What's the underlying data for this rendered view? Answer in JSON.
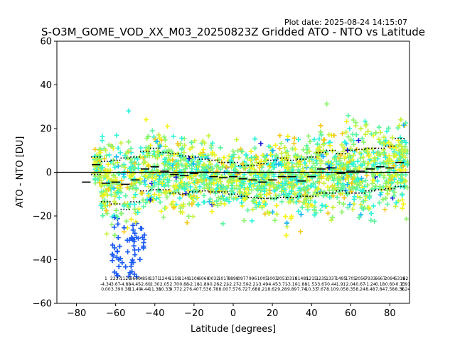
{
  "plot_date": "Plot date: 2025-08-24 14:15:07",
  "chart_data": {
    "type": "scatter",
    "title": "S-O3M_GOME_VOD_XX_M03_20250823Z Gridded ATO - NTO vs Latitude",
    "xlabel": "Latitude [degrees]",
    "ylabel": "ATO - NTO [DU]",
    "xlim": [
      -90,
      90
    ],
    "ylim": [
      -60,
      60
    ],
    "xticks": [
      -80,
      -60,
      -40,
      -20,
      0,
      20,
      40,
      60,
      80
    ],
    "yticks": [
      -60,
      -40,
      -20,
      0,
      20,
      40,
      60
    ],
    "zero_line": 0,
    "grid": false,
    "bin_width": 5,
    "mean_per_bin": [
      {
        "lat": -75,
        "value": -4.5
      },
      {
        "lat": -70,
        "value": 3.5
      },
      {
        "lat": -65,
        "value": -5.0
      },
      {
        "lat": -60,
        "value": -4.5
      },
      {
        "lat": -55,
        "value": -5.5
      },
      {
        "lat": -50,
        "value": -3.5
      },
      {
        "lat": -45,
        "value": 1.5
      },
      {
        "lat": -40,
        "value": 2.5
      },
      {
        "lat": -35,
        "value": 0.5
      },
      {
        "lat": -30,
        "value": -1.0
      },
      {
        "lat": -25,
        "value": -1.5
      },
      {
        "lat": -20,
        "value": -0.5
      },
      {
        "lat": -15,
        "value": 0.0
      },
      {
        "lat": -10,
        "value": -2.0
      },
      {
        "lat": -5,
        "value": -2.5
      },
      {
        "lat": 0,
        "value": -2.0
      },
      {
        "lat": 5,
        "value": -3.0
      },
      {
        "lat": 10,
        "value": -3.5
      },
      {
        "lat": 15,
        "value": -4.5
      },
      {
        "lat": 20,
        "value": -3.5
      },
      {
        "lat": 25,
        "value": -2.0
      },
      {
        "lat": 30,
        "value": -2.0
      },
      {
        "lat": 35,
        "value": -4.0
      },
      {
        "lat": 40,
        "value": -2.0
      },
      {
        "lat": 45,
        "value": 1.5
      },
      {
        "lat": 50,
        "value": 2.0
      },
      {
        "lat": 55,
        "value": -0.5
      },
      {
        "lat": 60,
        "value": 0.5
      },
      {
        "lat": 65,
        "value": 0.5
      },
      {
        "lat": 70,
        "value": 1.5
      },
      {
        "lat": 75,
        "value": 2.5
      },
      {
        "lat": 80,
        "value": 2.0
      },
      {
        "lat": 85,
        "value": 4.5
      }
    ],
    "std_upper_per_bin": [
      {
        "lat": -70,
        "value": 7.0
      },
      {
        "lat": -65,
        "value": 5.0
      },
      {
        "lat": -60,
        "value": 5.5
      },
      {
        "lat": -55,
        "value": 6.5
      },
      {
        "lat": -50,
        "value": 7.0
      },
      {
        "lat": -45,
        "value": 9.5
      },
      {
        "lat": -40,
        "value": 11.0
      },
      {
        "lat": -35,
        "value": 9.0
      },
      {
        "lat": -30,
        "value": 8.5
      },
      {
        "lat": -25,
        "value": 7.5
      },
      {
        "lat": -20,
        "value": 7.0
      },
      {
        "lat": -15,
        "value": 6.0
      },
      {
        "lat": -10,
        "value": 5.5
      },
      {
        "lat": -5,
        "value": 4.5
      },
      {
        "lat": 0,
        "value": 4.5
      },
      {
        "lat": 5,
        "value": 3.0
      },
      {
        "lat": 10,
        "value": 3.0
      },
      {
        "lat": 15,
        "value": 4.0
      },
      {
        "lat": 20,
        "value": 5.5
      },
      {
        "lat": 25,
        "value": 6.5
      },
      {
        "lat": 30,
        "value": 5.5
      },
      {
        "lat": 35,
        "value": 6.0
      },
      {
        "lat": 40,
        "value": 7.0
      },
      {
        "lat": 45,
        "value": 9.0
      },
      {
        "lat": 50,
        "value": 10.0
      },
      {
        "lat": 55,
        "value": 8.5
      },
      {
        "lat": 60,
        "value": 10.0
      },
      {
        "lat": 65,
        "value": 10.5
      },
      {
        "lat": 70,
        "value": 11.0
      },
      {
        "lat": 75,
        "value": 11.0
      },
      {
        "lat": 80,
        "value": 12.0
      },
      {
        "lat": 85,
        "value": 15.5
      }
    ],
    "std_lower_per_bin": [
      {
        "lat": -70,
        "value": -1.0
      },
      {
        "lat": -65,
        "value": -13.5
      },
      {
        "lat": -60,
        "value": -14.5
      },
      {
        "lat": -55,
        "value": -17.0
      },
      {
        "lat": -50,
        "value": -13.5
      },
      {
        "lat": -45,
        "value": -8.5
      },
      {
        "lat": -40,
        "value": -8.0
      },
      {
        "lat": -35,
        "value": -8.0
      },
      {
        "lat": -30,
        "value": -9.5
      },
      {
        "lat": -25,
        "value": -10.0
      },
      {
        "lat": -20,
        "value": -9.0
      },
      {
        "lat": -15,
        "value": -8.5
      },
      {
        "lat": -10,
        "value": -9.0
      },
      {
        "lat": -5,
        "value": -9.0
      },
      {
        "lat": 0,
        "value": -10.0
      },
      {
        "lat": 5,
        "value": -11.0
      },
      {
        "lat": 10,
        "value": -11.5
      },
      {
        "lat": 15,
        "value": -12.0
      },
      {
        "lat": 20,
        "value": -12.0
      },
      {
        "lat": 25,
        "value": -11.5
      },
      {
        "lat": 30,
        "value": -11.5
      },
      {
        "lat": 35,
        "value": -11.0
      },
      {
        "lat": 40,
        "value": -11.0
      },
      {
        "lat": 45,
        "value": -9.5
      },
      {
        "lat": 50,
        "value": -9.5
      },
      {
        "lat": 55,
        "value": -8.5
      },
      {
        "lat": 60,
        "value": -9.5
      },
      {
        "lat": 65,
        "value": -9.5
      },
      {
        "lat": 70,
        "value": -8.5
      },
      {
        "lat": 75,
        "value": -8.0
      },
      {
        "lat": 80,
        "value": -7.5
      },
      {
        "lat": 85,
        "value": -6.5
      }
    ],
    "scatter_colors": [
      "#2bf5d8",
      "#5cf5a0",
      "#8cf56b",
      "#c8f23a",
      "#f5f51a",
      "#f5c81a",
      "#1ab8f5",
      "#1a5af5",
      "#1a1ad8"
    ],
    "bin_stats": [
      {
        "lat": -65,
        "count": "1",
        "mean": "-4.34",
        "std": "0.00"
      },
      {
        "lat": -60,
        "count": "2237",
        "mean": "3.67",
        "std": "3.39"
      },
      {
        "lat": -55,
        "count": "1129",
        "mean": "-4.88",
        "std": "0.38"
      },
      {
        "lat": -50,
        "count": "3600",
        "mean": "-4.45",
        "std": "11.49"
      },
      {
        "lat": -45,
        "count": "4850",
        "mean": "-2.60",
        "std": "4.44"
      },
      {
        "lat": -40,
        "count": "1371",
        "mean": "2.30",
        "std": "11.38"
      },
      {
        "lat": -35,
        "count": "1244",
        "mean": "2.05",
        "std": "10.33"
      },
      {
        "lat": -30,
        "count": "1159",
        "mean": "2.70",
        "std": "9.77"
      },
      {
        "lat": -25,
        "count": "1149",
        "mean": "0.88",
        "std": "2.27"
      },
      {
        "lat": -20,
        "count": "1106",
        "mean": "-2.18",
        "std": "6.40"
      },
      {
        "lat": -15,
        "count": "6066",
        "mean": "-1.80",
        "std": "7.53"
      },
      {
        "lat": -10,
        "count": "0032",
        "mean": "-0.26",
        "std": "6.78"
      },
      {
        "lat": -5,
        "count": "1017",
        "mean": "-2.22",
        "std": "8.00"
      },
      {
        "lat": 0,
        "count": "8898",
        "mean": "-2.27",
        "std": "7.57"
      },
      {
        "lat": 5,
        "count": "0977",
        "mean": "-2.50",
        "std": "6.72"
      },
      {
        "lat": 10,
        "count": "996",
        "mean": "-2.21",
        "std": "7.68"
      },
      {
        "lat": 15,
        "count": "1005",
        "mean": "-3.49",
        "std": "8.21"
      },
      {
        "lat": 20,
        "count": "1003",
        "mean": "-4.45",
        "std": "8.62"
      },
      {
        "lat": 25,
        "count": "2051",
        "mean": "-3.71",
        "std": "9.28"
      },
      {
        "lat": 30,
        "count": "0310",
        "mean": "-3.10",
        "std": "9.89"
      },
      {
        "lat": 35,
        "count": "51485",
        "mean": "-1.88",
        "std": "7.74"
      },
      {
        "lat": 40,
        "count": "1215",
        "mean": "-1.53",
        "std": "10.33"
      },
      {
        "lat": 45,
        "count": "1235",
        "mean": "-3.67",
        "std": "7.67"
      },
      {
        "lat": 50,
        "count": "1337",
        "mean": "-0.44",
        "std": "8.10"
      },
      {
        "lat": 55,
        "count": "1495",
        "mean": "1.91",
        "std": "9.05"
      },
      {
        "lat": 60,
        "count": "1705",
        "mean": "2.04",
        "std": "8.35"
      },
      {
        "lat": 65,
        "count": "2056",
        "mean": "0.67",
        "std": "8.24"
      },
      {
        "lat": 70,
        "count": "7933",
        "mean": "-1.24",
        "std": "8.48"
      },
      {
        "lat": 75,
        "count": "6667",
        "mean": "0.18",
        "std": "7.84"
      },
      {
        "lat": 80,
        "count": "2094",
        "mean": "0.60",
        "std": "7.58"
      },
      {
        "lat": 85,
        "count": "5319",
        "mean": "-0.73",
        "std": "8.36"
      },
      {
        "lat": 88,
        "count": "62",
        "mean": "2.91",
        "std": "9.24"
      }
    ]
  }
}
